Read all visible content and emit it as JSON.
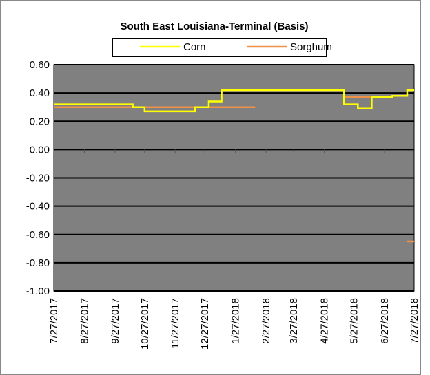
{
  "chart_data": {
    "type": "line",
    "title": "South East Louisiana-Terminal (Basis)",
    "x": [
      "7/27/2017",
      "10/15/2017",
      "10/15/2017",
      "10/27/2017",
      "10/27/2017",
      "12/17/2017",
      "12/17/2017",
      "12/31/2017",
      "12/31/2017",
      "1/13/2018",
      "1/13/2018",
      "2/16/2018",
      "5/17/2018",
      "5/17/2018",
      "5/31/2018",
      "5/31/2018",
      "6/14/2018",
      "6/14/2018",
      "7/5/2018",
      "7/5/2018",
      "7/20/2018",
      "7/20/2018",
      "7/27/2018"
    ],
    "series": [
      {
        "name": "Corn",
        "color": "#ffff00",
        "values": [
          0.32,
          0.32,
          0.3,
          0.3,
          0.27,
          0.27,
          0.3,
          0.3,
          0.34,
          0.34,
          0.42,
          0.42,
          0.42,
          0.32,
          0.32,
          0.29,
          0.29,
          0.37,
          0.37,
          0.38,
          0.38,
          0.42,
          0.42
        ]
      },
      {
        "name": "Sorghum",
        "color": "#f0914a",
        "values": [
          0.3,
          0.3,
          0.3,
          0.3,
          0.3,
          0.3,
          0.3,
          0.3,
          0.3,
          0.3,
          0.3,
          0.3,
          null,
          0.37,
          0.37,
          0.37,
          0.37,
          null,
          null,
          null,
          -0.65,
          -0.65,
          -0.65
        ]
      }
    ],
    "xlim": [
      "7/27/2017",
      "7/27/2018"
    ],
    "xticks": [
      "7/27/2017",
      "8/27/2017",
      "9/27/2017",
      "10/27/2017",
      "11/27/2017",
      "12/27/2017",
      "1/27/2018",
      "2/27/2018",
      "3/27/2018",
      "4/27/2018",
      "5/27/2018",
      "6/27/2018",
      "7/27/2018"
    ],
    "ylim": [
      -1,
      0.6
    ],
    "yticks": [
      {
        "value": -1,
        "label": "-1.00"
      },
      {
        "value": -0.8,
        "label": "-0.80"
      },
      {
        "value": -0.6,
        "label": "-0.60"
      },
      {
        "value": -0.4,
        "label": "-0.40"
      },
      {
        "value": -0.2,
        "label": "-0.20"
      },
      {
        "value": 0,
        "label": "0.00"
      },
      {
        "value": 0.2,
        "label": "0.20"
      },
      {
        "value": 0.4,
        "label": "0.40"
      },
      {
        "value": 0.6,
        "label": "0.60"
      }
    ],
    "grid": true,
    "legend": "top",
    "plot_background": "#808080"
  }
}
